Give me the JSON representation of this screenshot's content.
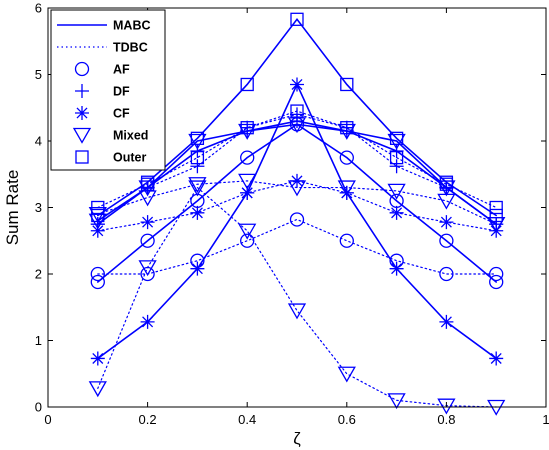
{
  "chart_data": {
    "type": "line",
    "xlabel": "ζ",
    "ylabel": "Sum Rate",
    "xlim": [
      0,
      1
    ],
    "ylim": [
      0,
      6
    ],
    "xticks": [
      "0",
      "0.2",
      "0.4",
      "0.6",
      "0.8",
      "1"
    ],
    "yticks": [
      "0",
      "1",
      "2",
      "3",
      "4",
      "5",
      "6"
    ],
    "grid": false,
    "legend_position": "top-left",
    "line_color": "#0000ff",
    "legend": [
      {
        "label": "MABC",
        "style": "solid"
      },
      {
        "label": "TDBC",
        "style": "dotted"
      },
      {
        "label": "AF",
        "marker": "circle"
      },
      {
        "label": "DF",
        "marker": "plus"
      },
      {
        "label": "CF",
        "marker": "star"
      },
      {
        "label": "Mixed",
        "marker": "triangle-down"
      },
      {
        "label": "Outer",
        "marker": "square"
      }
    ],
    "x": [
      0.1,
      0.2,
      0.3,
      0.4,
      0.5,
      0.6,
      0.7,
      0.8,
      0.9
    ],
    "series": [
      {
        "protocol": "MABC",
        "scheme": "AF",
        "values": [
          1.88,
          2.5,
          3.1,
          3.75,
          4.25,
          3.75,
          3.1,
          2.5,
          1.88
        ]
      },
      {
        "protocol": "MABC",
        "scheme": "DF",
        "values": [
          2.75,
          3.3,
          3.85,
          4.15,
          4.3,
          4.15,
          3.85,
          3.3,
          2.75
        ]
      },
      {
        "protocol": "MABC",
        "scheme": "CF",
        "values": [
          0.73,
          1.28,
          2.08,
          3.22,
          4.85,
          3.22,
          2.08,
          1.28,
          0.73
        ]
      },
      {
        "protocol": "MABC",
        "scheme": "Mixed",
        "values": [
          2.8,
          3.3,
          4.0,
          4.15,
          4.25,
          4.15,
          4.0,
          3.3,
          2.75
        ]
      },
      {
        "protocol": "MABC",
        "scheme": "Outer",
        "values": [
          2.88,
          3.38,
          4.04,
          4.85,
          5.83,
          4.85,
          4.04,
          3.38,
          2.88
        ]
      },
      {
        "protocol": "TDBC",
        "scheme": "AF",
        "values": [
          2.0,
          2.0,
          2.2,
          2.5,
          2.82,
          2.5,
          2.2,
          2.0,
          2.0
        ]
      },
      {
        "protocol": "TDBC",
        "scheme": "DF",
        "values": [
          2.75,
          3.3,
          3.62,
          4.2,
          4.4,
          4.2,
          3.62,
          3.3,
          2.75
        ]
      },
      {
        "protocol": "TDBC",
        "scheme": "CF",
        "values": [
          2.65,
          2.78,
          2.92,
          3.22,
          3.4,
          3.22,
          2.92,
          2.78,
          2.65
        ]
      },
      {
        "protocol": "TDBC",
        "scheme": "Mixed",
        "values": [
          0.28,
          2.1,
          3.3,
          2.65,
          1.45,
          0.5,
          0.1,
          0.02,
          0.0
        ]
      },
      {
        "protocol": "TDBC",
        "scheme": "Outer",
        "values": [
          3.0,
          3.35,
          3.75,
          4.2,
          4.45,
          4.2,
          3.75,
          3.35,
          3.0
        ]
      },
      {
        "protocol": "TDBC",
        "scheme": "Mixed",
        "values": [
          2.9,
          3.15,
          3.35,
          3.4,
          3.3,
          3.3,
          3.25,
          3.1,
          2.75
        ]
      }
    ]
  }
}
